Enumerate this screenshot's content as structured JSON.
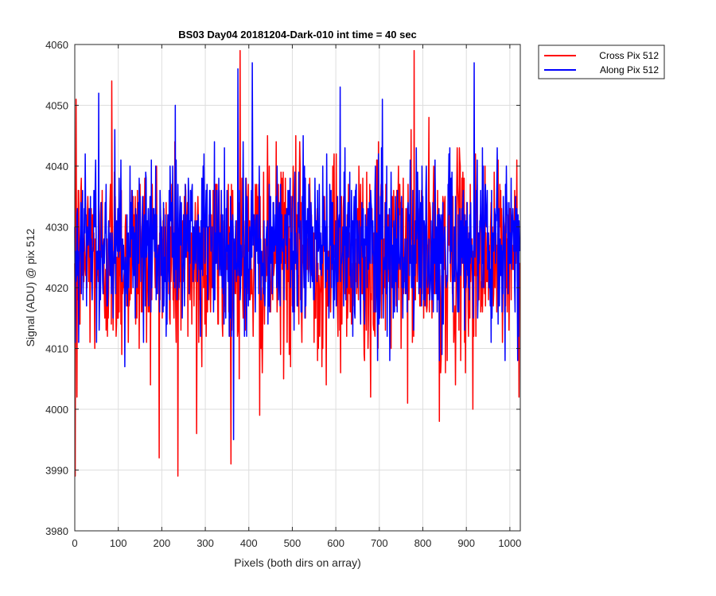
{
  "chart_data": {
    "type": "line",
    "title": "BS03 Day04 20181204-Dark-010 int time = 40 sec",
    "xlabel": "Pixels (both dirs on array)",
    "ylabel": "Signal (ADU) @ pix 512",
    "xlim": [
      0,
      1024
    ],
    "ylim": [
      3980,
      4060
    ],
    "xticks": [
      0,
      100,
      200,
      300,
      400,
      500,
      600,
      700,
      800,
      900,
      1000
    ],
    "yticks": [
      3980,
      3990,
      4000,
      4010,
      4020,
      4030,
      4040,
      4050,
      4060
    ],
    "grid": true,
    "legend_position": "outside-top-right",
    "n_points": 1024,
    "series": [
      {
        "name": "Cross Pix 512",
        "color": "#ff0000",
        "notes": "noise around ~4025 ADU; low start values near x=0 (~3989)",
        "envelope": {
          "min": 3989,
          "max": 4059
        },
        "keypoints": [
          {
            "x": 0,
            "y": 4024
          },
          {
            "x": 1,
            "y": 3989
          },
          {
            "x": 3,
            "y": 4051
          },
          {
            "x": 5,
            "y": 4002
          },
          {
            "x": 85,
            "y": 4054
          },
          {
            "x": 237,
            "y": 3989
          },
          {
            "x": 280,
            "y": 3996
          },
          {
            "x": 380,
            "y": 4059
          },
          {
            "x": 425,
            "y": 3999
          },
          {
            "x": 680,
            "y": 4002
          },
          {
            "x": 780,
            "y": 4059
          },
          {
            "x": 838,
            "y": 3998
          },
          {
            "x": 915,
            "y": 4000
          }
        ]
      },
      {
        "name": "Along Pix 512",
        "color": "#0000ff",
        "notes": "noise around ~4027 ADU",
        "envelope": {
          "min": 3995,
          "max": 4057
        },
        "keypoints": [
          {
            "x": 0,
            "y": 4030
          },
          {
            "x": 55,
            "y": 4052
          },
          {
            "x": 365,
            "y": 3995
          },
          {
            "x": 375,
            "y": 4056
          },
          {
            "x": 408,
            "y": 4057
          },
          {
            "x": 918,
            "y": 4057
          },
          {
            "x": 1020,
            "y": 4012
          }
        ]
      }
    ]
  }
}
